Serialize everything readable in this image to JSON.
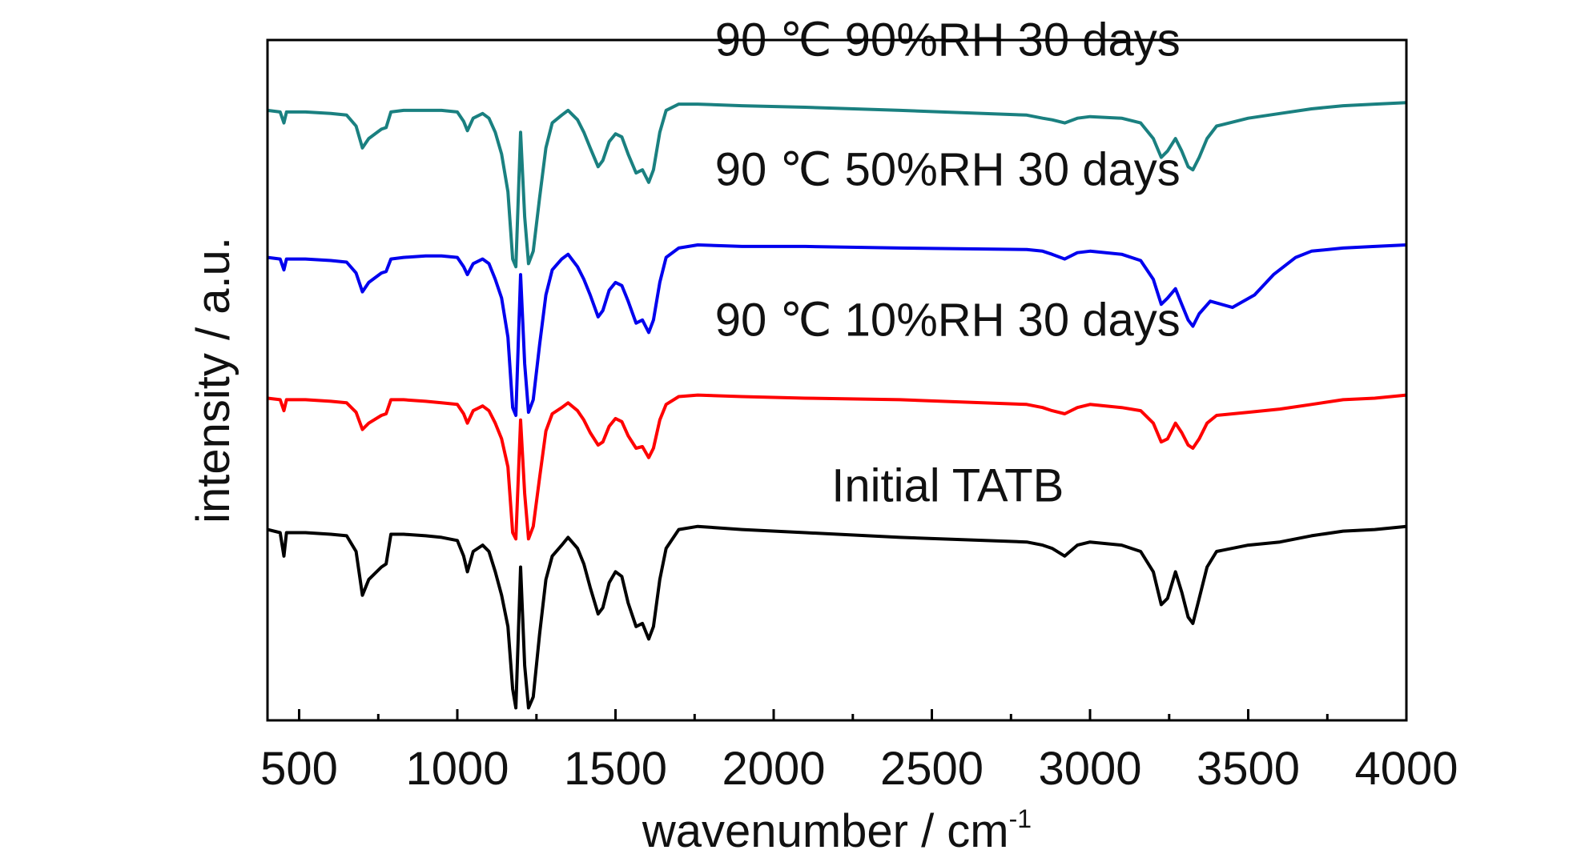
{
  "chart_data": {
    "type": "line",
    "xlabel": "wavenumber / cm",
    "xlabel_sup": "-1",
    "ylabel": "intensity / a.u.",
    "xlim": [
      400,
      4000
    ],
    "ylim": [
      0,
      4.35
    ],
    "x_ticks": [
      500,
      1000,
      1500,
      2000,
      2500,
      3000,
      3500,
      4000
    ],
    "x_tick_labels": [
      "500",
      "1000",
      "1500",
      "2000",
      "2500",
      "3000",
      "3500",
      "4000"
    ],
    "y_ticks_shown": false,
    "grid": false,
    "legend": "none",
    "series": [
      {
        "name": "Initial TATB",
        "color": "#000000",
        "x": [
          400,
          440,
          452,
          460,
          520,
          600,
          650,
          680,
          700,
          720,
          760,
          775,
          790,
          830,
          900,
          950,
          1000,
          1020,
          1032,
          1050,
          1080,
          1100,
          1120,
          1140,
          1160,
          1175,
          1185,
          1200,
          1213,
          1225,
          1240,
          1260,
          1280,
          1300,
          1330,
          1350,
          1380,
          1400,
          1420,
          1445,
          1460,
          1480,
          1500,
          1520,
          1540,
          1565,
          1585,
          1605,
          1620,
          1640,
          1660,
          1700,
          1760,
          1900,
          2100,
          2400,
          2800,
          2850,
          2880,
          2920,
          2960,
          3000,
          3100,
          3160,
          3200,
          3225,
          3245,
          3270,
          3290,
          3310,
          3325,
          3345,
          3370,
          3400,
          3500,
          3600,
          3700,
          3800,
          3900,
          4000
        ],
        "y": [
          1.22,
          1.2,
          1.05,
          1.2,
          1.2,
          1.19,
          1.18,
          1.08,
          0.8,
          0.9,
          0.98,
          1.0,
          1.19,
          1.19,
          1.18,
          1.17,
          1.15,
          1.05,
          0.95,
          1.08,
          1.12,
          1.08,
          0.95,
          0.8,
          0.6,
          0.2,
          0.08,
          0.98,
          0.35,
          0.08,
          0.15,
          0.55,
          0.9,
          1.05,
          1.12,
          1.17,
          1.1,
          1.0,
          0.85,
          0.68,
          0.72,
          0.88,
          0.95,
          0.92,
          0.75,
          0.6,
          0.62,
          0.52,
          0.6,
          0.9,
          1.1,
          1.22,
          1.24,
          1.22,
          1.2,
          1.17,
          1.14,
          1.12,
          1.1,
          1.05,
          1.12,
          1.14,
          1.12,
          1.08,
          0.95,
          0.74,
          0.78,
          0.95,
          0.82,
          0.66,
          0.62,
          0.78,
          0.98,
          1.08,
          1.12,
          1.14,
          1.18,
          1.21,
          1.22,
          1.24
        ]
      },
      {
        "name": "90 ℃ 10%RH 30 days",
        "color": "#ff0000",
        "x": [
          400,
          440,
          452,
          460,
          520,
          600,
          650,
          680,
          700,
          720,
          760,
          775,
          790,
          830,
          900,
          950,
          1000,
          1020,
          1032,
          1050,
          1080,
          1100,
          1120,
          1140,
          1160,
          1175,
          1185,
          1200,
          1213,
          1225,
          1240,
          1260,
          1280,
          1300,
          1330,
          1350,
          1380,
          1400,
          1420,
          1445,
          1460,
          1480,
          1500,
          1520,
          1540,
          1565,
          1585,
          1605,
          1620,
          1640,
          1660,
          1700,
          1760,
          1900,
          2100,
          2400,
          2800,
          2850,
          2880,
          2920,
          2960,
          3000,
          3100,
          3160,
          3200,
          3225,
          3245,
          3270,
          3290,
          3310,
          3325,
          3345,
          3370,
          3400,
          3500,
          3600,
          3700,
          3800,
          3900,
          4000
        ],
        "y": [
          2.06,
          2.05,
          1.98,
          2.05,
          2.05,
          2.04,
          2.03,
          1.97,
          1.86,
          1.9,
          1.95,
          1.96,
          2.05,
          2.05,
          2.04,
          2.03,
          2.02,
          1.96,
          1.9,
          1.98,
          2.01,
          1.98,
          1.9,
          1.8,
          1.62,
          1.2,
          1.16,
          1.92,
          1.45,
          1.16,
          1.24,
          1.55,
          1.85,
          1.96,
          2.0,
          2.03,
          1.98,
          1.92,
          1.84,
          1.76,
          1.78,
          1.88,
          1.93,
          1.91,
          1.82,
          1.74,
          1.75,
          1.68,
          1.74,
          1.92,
          2.02,
          2.07,
          2.08,
          2.07,
          2.06,
          2.05,
          2.02,
          2.0,
          1.98,
          1.96,
          2.0,
          2.02,
          2.0,
          1.98,
          1.9,
          1.78,
          1.8,
          1.9,
          1.84,
          1.76,
          1.74,
          1.8,
          1.9,
          1.95,
          1.97,
          1.99,
          2.02,
          2.05,
          2.06,
          2.08
        ]
      },
      {
        "name": "90 ℃ 50%RH 30 days",
        "color": "#0000ee",
        "x": [
          400,
          440,
          452,
          460,
          520,
          600,
          650,
          680,
          700,
          720,
          760,
          775,
          790,
          830,
          900,
          950,
          1000,
          1020,
          1032,
          1050,
          1080,
          1100,
          1120,
          1140,
          1160,
          1175,
          1185,
          1200,
          1213,
          1225,
          1240,
          1260,
          1280,
          1300,
          1330,
          1350,
          1380,
          1400,
          1420,
          1445,
          1460,
          1480,
          1500,
          1520,
          1540,
          1565,
          1585,
          1605,
          1620,
          1640,
          1660,
          1700,
          1760,
          1900,
          2100,
          2400,
          2800,
          2850,
          2880,
          2920,
          2960,
          3000,
          3100,
          3160,
          3200,
          3225,
          3245,
          3270,
          3290,
          3310,
          3325,
          3345,
          3380,
          3450,
          3520,
          3580,
          3650,
          3700,
          3800,
          3900,
          4000
        ],
        "y": [
          2.96,
          2.95,
          2.88,
          2.95,
          2.95,
          2.94,
          2.93,
          2.86,
          2.74,
          2.8,
          2.86,
          2.87,
          2.95,
          2.96,
          2.97,
          2.97,
          2.96,
          2.9,
          2.85,
          2.92,
          2.95,
          2.92,
          2.82,
          2.7,
          2.45,
          2.0,
          1.95,
          2.85,
          2.28,
          1.97,
          2.05,
          2.4,
          2.72,
          2.88,
          2.95,
          2.98,
          2.9,
          2.82,
          2.72,
          2.58,
          2.62,
          2.75,
          2.8,
          2.78,
          2.68,
          2.54,
          2.56,
          2.48,
          2.56,
          2.8,
          2.96,
          3.02,
          3.04,
          3.03,
          3.03,
          3.02,
          3.01,
          3.0,
          2.98,
          2.95,
          2.99,
          3.0,
          2.98,
          2.94,
          2.82,
          2.66,
          2.7,
          2.76,
          2.66,
          2.56,
          2.52,
          2.6,
          2.68,
          2.64,
          2.72,
          2.85,
          2.96,
          3.0,
          3.02,
          3.03,
          3.04
        ]
      },
      {
        "name": "90 ℃ 90%RH 30 days",
        "color": "#1a8080",
        "x": [
          400,
          440,
          452,
          460,
          520,
          600,
          650,
          680,
          700,
          720,
          760,
          775,
          790,
          830,
          900,
          950,
          1000,
          1020,
          1032,
          1050,
          1080,
          1100,
          1120,
          1140,
          1160,
          1175,
          1185,
          1200,
          1213,
          1225,
          1240,
          1260,
          1280,
          1300,
          1330,
          1350,
          1380,
          1400,
          1420,
          1445,
          1460,
          1480,
          1500,
          1520,
          1540,
          1565,
          1585,
          1605,
          1620,
          1640,
          1660,
          1700,
          1760,
          1900,
          2100,
          2400,
          2800,
          2850,
          2880,
          2920,
          2960,
          3000,
          3100,
          3160,
          3200,
          3225,
          3245,
          3270,
          3290,
          3310,
          3325,
          3345,
          3370,
          3400,
          3500,
          3600,
          3700,
          3800,
          3900,
          4000
        ],
        "y": [
          3.9,
          3.89,
          3.82,
          3.89,
          3.89,
          3.88,
          3.87,
          3.8,
          3.66,
          3.72,
          3.78,
          3.79,
          3.89,
          3.9,
          3.9,
          3.9,
          3.89,
          3.83,
          3.77,
          3.85,
          3.88,
          3.85,
          3.76,
          3.62,
          3.38,
          2.95,
          2.9,
          3.76,
          3.22,
          2.92,
          3.0,
          3.34,
          3.66,
          3.82,
          3.87,
          3.9,
          3.84,
          3.76,
          3.66,
          3.54,
          3.58,
          3.7,
          3.75,
          3.73,
          3.62,
          3.5,
          3.52,
          3.44,
          3.52,
          3.76,
          3.9,
          3.94,
          3.94,
          3.93,
          3.92,
          3.9,
          3.87,
          3.85,
          3.84,
          3.82,
          3.85,
          3.86,
          3.85,
          3.82,
          3.72,
          3.6,
          3.64,
          3.72,
          3.64,
          3.54,
          3.52,
          3.6,
          3.72,
          3.8,
          3.85,
          3.88,
          3.91,
          3.93,
          3.94,
          3.95
        ]
      }
    ],
    "annotations": [
      {
        "text": "90 ℃ 90%RH 30 days",
        "x": 2550,
        "y": 4.25
      },
      {
        "text": "90 ℃ 50%RH 30 days",
        "x": 2550,
        "y": 3.42
      },
      {
        "text": "90 ℃ 10%RH 30 days",
        "x": 2550,
        "y": 2.46
      },
      {
        "text": "Initial TATB",
        "x": 2550,
        "y": 1.4
      }
    ]
  }
}
